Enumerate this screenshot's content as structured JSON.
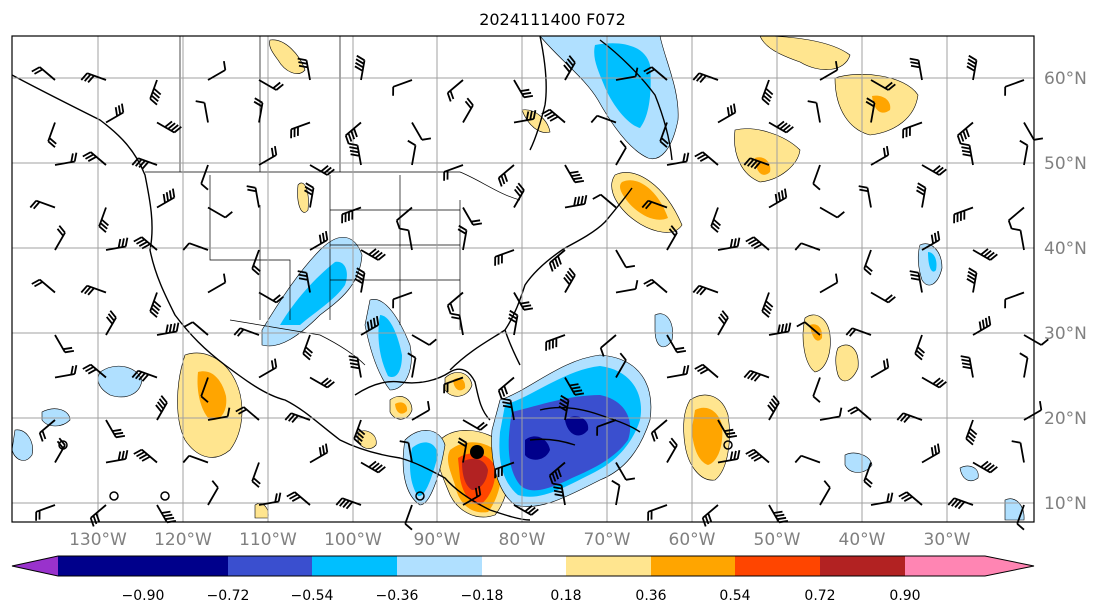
{
  "title": "2024111400 F072",
  "longitude_labels": [
    "130°W",
    "120°W",
    "110°W",
    "100°W",
    "90°W",
    "80°W",
    "70°W",
    "60°W",
    "50°W",
    "40°W",
    "30°W"
  ],
  "latitude_labels": [
    "60°N",
    "50°N",
    "40°N",
    "30°N",
    "20°N",
    "10°N"
  ],
  "colorbar": {
    "levels": [
      "−0.90",
      "−0.72",
      "−0.54",
      "−0.36",
      "−0.18",
      "0.18",
      "0.36",
      "0.54",
      "0.72",
      "0.90"
    ],
    "colors": [
      "#9932cc",
      "#00008b",
      "#3a4fcf",
      "#00bfff",
      "#b0e0ff",
      "#ffffff",
      "#ffe58f",
      "#ffa500",
      "#ff4500",
      "#b22222",
      "#ff85b3"
    ]
  },
  "colors": {
    "grid": "#a0a0a0",
    "coast": "#000000"
  }
}
